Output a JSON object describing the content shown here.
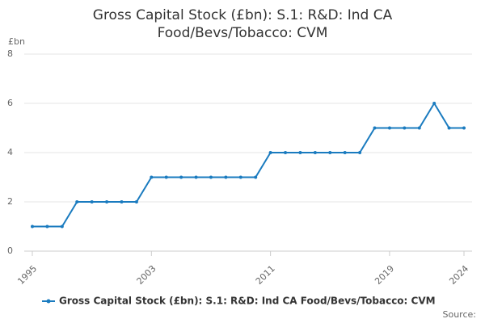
{
  "chart_data": {
    "type": "line",
    "title": "Gross Capital Stock (£bn): S.1: R&D: Ind CA Food/Bevs/Tobacco: CVM",
    "y_label": "£bn",
    "source": "Source:",
    "x": [
      1995,
      1996,
      1997,
      1998,
      1999,
      2000,
      2001,
      2002,
      2003,
      2004,
      2005,
      2006,
      2007,
      2008,
      2009,
      2010,
      2011,
      2012,
      2013,
      2014,
      2015,
      2016,
      2017,
      2018,
      2019,
      2020,
      2021,
      2022,
      2023,
      2024
    ],
    "series": [
      {
        "name": "Gross Capital Stock (£bn): S.1: R&D: Ind CA Food/Bevs/Tobacco: CVM",
        "color": "#1a7bbf",
        "values": [
          1,
          1,
          1,
          2,
          2,
          2,
          2,
          2,
          3,
          3,
          3,
          3,
          3,
          3,
          3,
          3,
          4,
          4,
          4,
          4,
          4,
          4,
          4,
          5,
          5,
          5,
          5,
          6,
          5,
          5
        ]
      }
    ],
    "xlim": [
      1995,
      2024
    ],
    "xticks": [
      1995,
      2003,
      2011,
      2019,
      2024
    ],
    "ylim": [
      0,
      8
    ],
    "yticks": [
      0,
      2,
      4,
      6,
      8
    ],
    "grid": true
  }
}
